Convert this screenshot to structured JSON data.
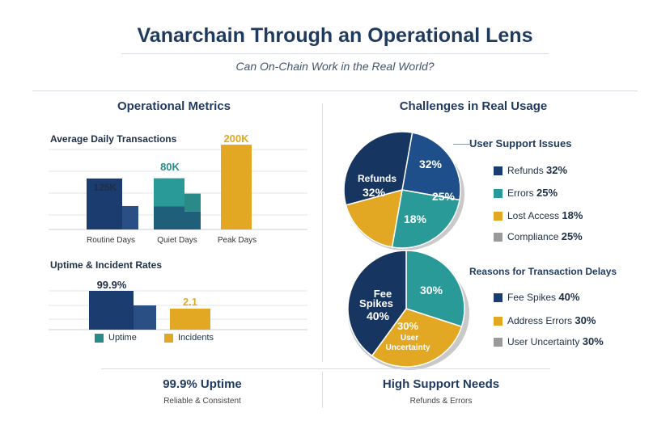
{
  "header": {
    "title": "Vanarchain Through an Operational Lens",
    "subtitle": "Can On-Chain Work in the Real World?"
  },
  "left": {
    "section_title": "Operational Metrics",
    "tx_chart": {
      "title": "Average Daily Transactions",
      "categories": [
        "Routine Days",
        "Quiet Days",
        "Peak Days"
      ],
      "labels": [
        "125K",
        "80K",
        "200K"
      ]
    },
    "uptime_chart": {
      "title": "Uptime & Incident Rates",
      "labels": [
        "99.9%",
        "2.1"
      ],
      "legend": [
        "Uptime",
        "Incidents"
      ]
    }
  },
  "right": {
    "section_title": "Challenges in Real Usage",
    "support": {
      "title": "User Support Issues",
      "legend": [
        {
          "label": "Refunds",
          "value": "32%"
        },
        {
          "label": "Errors",
          "value": "25%"
        },
        {
          "label": "Lost Access",
          "value": "18%"
        },
        {
          "label": "Compliance",
          "value": "25%"
        }
      ],
      "slice_labels": {
        "refunds_name": "Refunds",
        "refunds_pct": "32%",
        "top": "32%",
        "errors": "25%",
        "lost": "18%"
      }
    },
    "delays": {
      "title": "Reasons for Transaction Delays",
      "legend": [
        {
          "label": "Fee Spikes",
          "value": "40%"
        },
        {
          "label": "Address Errors",
          "value": "30%"
        },
        {
          "label": "User Uncertainty",
          "value": "30%"
        }
      ],
      "slice_labels": {
        "fee_line1": "Fee",
        "fee_line2": "Spikes",
        "fee_pct": "40%",
        "addr_pct": "30%",
        "user_pct": "30%",
        "user_line1": "User",
        "user_line2": "Uncertainty"
      }
    }
  },
  "footer": {
    "left_big": "99.9% Uptime",
    "left_small": "Reliable & Consistent",
    "right_big": "High Support Needs",
    "right_small": "Refunds & Errors"
  },
  "colors": {
    "navy": "#1a3c6e",
    "teal": "#2a9a98",
    "gold": "#e3a823",
    "gray": "#9a9a9a"
  },
  "chart_data": [
    {
      "type": "bar",
      "title": "Average Daily Transactions",
      "categories": [
        "Routine Days",
        "Quiet Days",
        "Peak Days"
      ],
      "values": [
        125000,
        80000,
        200000
      ],
      "ylim": [
        0,
        210000
      ]
    },
    {
      "type": "bar",
      "title": "Uptime & Incident Rates",
      "categories": [
        "Uptime",
        "Incidents"
      ],
      "values": [
        99.9,
        2.1
      ]
    },
    {
      "type": "pie",
      "title": "User Support Issues",
      "categories": [
        "Refunds",
        "Errors",
        "Lost Access",
        "Compliance"
      ],
      "values": [
        32,
        25,
        18,
        25
      ]
    },
    {
      "type": "pie",
      "title": "Reasons for Transaction Delays",
      "categories": [
        "Fee Spikes",
        "Address Errors",
        "User Uncertainty"
      ],
      "values": [
        40,
        30,
        30
      ]
    }
  ]
}
